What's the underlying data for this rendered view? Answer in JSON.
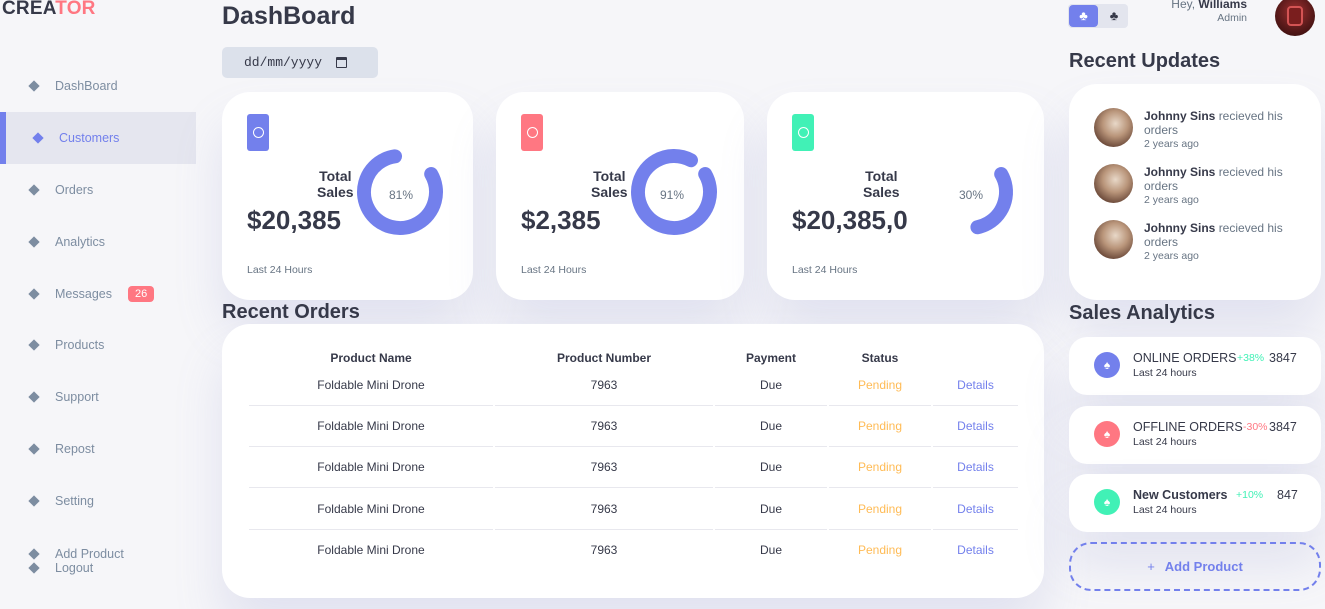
{
  "logo": {
    "part1": "CREA",
    "part2": "TOR"
  },
  "sidebar": {
    "items": [
      {
        "label": "DashBoard"
      },
      {
        "label": "Customers"
      },
      {
        "label": "Orders"
      },
      {
        "label": "Analytics"
      },
      {
        "label": "Messages",
        "badge": "26"
      },
      {
        "label": "Products"
      },
      {
        "label": "Support"
      },
      {
        "label": "Repost"
      },
      {
        "label": "Setting"
      },
      {
        "label": "Add Product"
      },
      {
        "label": "Logout"
      }
    ],
    "active": "Customers"
  },
  "header": {
    "title": "DashBoard",
    "date_placeholder": "dd/mm/yyyy"
  },
  "user": {
    "greeting": "Hey,",
    "name": "Williams",
    "role": "Admin"
  },
  "theme_toggle": {
    "light_icon": "♣",
    "dark_icon": "♣"
  },
  "cards": [
    {
      "label_line1": "Total",
      "label_line2": "Sales",
      "value": "$20,385",
      "percent": "81%",
      "progress": 0.81,
      "footer": "Last 24 Hours",
      "color": "#7380ec"
    },
    {
      "label_line1": "Total",
      "label_line2": "Sales",
      "value": "$2,385",
      "percent": "91%",
      "progress": 0.91,
      "footer": "Last 24 Hours",
      "color": "#ff7782"
    },
    {
      "label_line1": "Total",
      "label_line2": "Sales",
      "value": "$20,385,0",
      "percent": "30%",
      "progress": 0.3,
      "footer": "Last 24 Hours",
      "color": "#41f1b6"
    }
  ],
  "recent_orders": {
    "title": "Recent Orders",
    "headers": [
      "Product Name",
      "Product Number",
      "Payment",
      "Status"
    ],
    "rows": [
      {
        "name": "Foldable Mini Drone",
        "number": "7963",
        "payment": "Due",
        "status": "Pending",
        "action": "Details"
      },
      {
        "name": "Foldable Mini Drone",
        "number": "7963",
        "payment": "Due",
        "status": "Pending",
        "action": "Details"
      },
      {
        "name": "Foldable Mini Drone",
        "number": "7963",
        "payment": "Due",
        "status": "Pending",
        "action": "Details"
      },
      {
        "name": "Foldable Mini Drone",
        "number": "7963",
        "payment": "Due",
        "status": "Pending",
        "action": "Details"
      },
      {
        "name": "Foldable Mini Drone",
        "number": "7963",
        "payment": "Due",
        "status": "Pending",
        "action": "Details"
      }
    ]
  },
  "recent_updates": {
    "title": "Recent Updates",
    "items": [
      {
        "name": "Johnny Sins",
        "text": "recieved his orders",
        "time": "2 years ago"
      },
      {
        "name": "Johnny Sins",
        "text": "recieved his orders",
        "time": "2 years ago"
      },
      {
        "name": "Johnny Sins",
        "text": "recieved his orders",
        "time": "2 years ago"
      }
    ]
  },
  "sales_analytics": {
    "title": "Sales Analytics",
    "items": [
      {
        "name": "ONLINE ORDERS",
        "sub": "Last 24 hours",
        "change": "+38%",
        "value": "3847",
        "color": "#7380ec",
        "change_color": "#41f1b6"
      },
      {
        "name": "OFFLINE ORDERS",
        "sub": "Last 24 hours",
        "change": "-30%",
        "value": "3847",
        "color": "#ff7782",
        "change_color": "#ff7782"
      },
      {
        "name": "New Customers",
        "sub": "Last 24 hours",
        "change": "+10%",
        "value": "847",
        "color": "#41f1b6",
        "change_color": "#41f1b6"
      }
    ],
    "add_button": {
      "icon": "+",
      "label": "Add Product"
    }
  }
}
